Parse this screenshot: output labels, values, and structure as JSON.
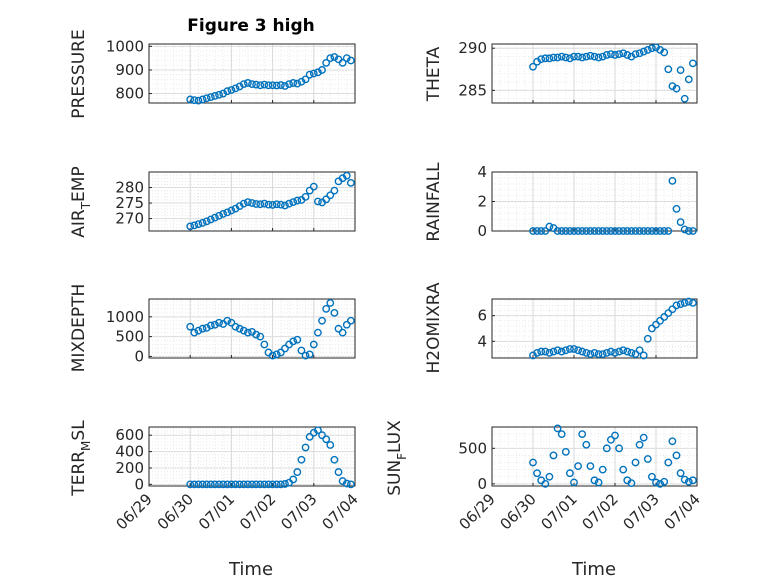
{
  "figure": {
    "title": "Figure 3 high",
    "marker_color": "#0072BD",
    "axis_color": "#262626",
    "grid_color": "#d9d9d9"
  },
  "chart_data": [
    {
      "type": "scatter",
      "ylabel": "PRESSURE",
      "title": "Figure 3 high",
      "xlim": [
        0,
        5
      ],
      "ylim": [
        760,
        1010
      ],
      "yticks": [
        800,
        900,
        1000
      ],
      "x": [
        1.0,
        1.1,
        1.2,
        1.3,
        1.4,
        1.5,
        1.6,
        1.7,
        1.8,
        1.9,
        2.0,
        2.1,
        2.2,
        2.3,
        2.4,
        2.5,
        2.6,
        2.7,
        2.8,
        2.9,
        3.0,
        3.1,
        3.2,
        3.3,
        3.4,
        3.5,
        3.6,
        3.7,
        3.8,
        3.9,
        4.0,
        4.1,
        4.2,
        4.3,
        4.4,
        4.5,
        4.6,
        4.7,
        4.8,
        4.9
      ],
      "y": [
        775,
        772,
        770,
        775,
        780,
        785,
        790,
        795,
        800,
        810,
        815,
        822,
        830,
        840,
        845,
        840,
        838,
        835,
        838,
        835,
        835,
        834,
        836,
        832,
        840,
        845,
        842,
        850,
        860,
        880,
        885,
        890,
        900,
        930,
        950,
        955,
        945,
        930,
        950,
        940
      ]
    },
    {
      "type": "scatter",
      "ylabel": "THETA",
      "xlim": [
        0,
        5
      ],
      "ylim": [
        283.5,
        290.5
      ],
      "yticks": [
        285,
        290
      ],
      "x": [
        1.0,
        1.1,
        1.2,
        1.3,
        1.4,
        1.5,
        1.6,
        1.7,
        1.8,
        1.9,
        2.0,
        2.1,
        2.2,
        2.3,
        2.4,
        2.5,
        2.6,
        2.7,
        2.8,
        2.9,
        3.0,
        3.1,
        3.2,
        3.3,
        3.4,
        3.5,
        3.6,
        3.7,
        3.8,
        3.9,
        4.0,
        4.1,
        4.2,
        4.3,
        4.4,
        4.5,
        4.6,
        4.7,
        4.8,
        4.9
      ],
      "y": [
        287.8,
        288.4,
        288.7,
        288.8,
        288.8,
        288.9,
        288.9,
        289.0,
        288.9,
        288.8,
        289.0,
        289.0,
        288.9,
        289.0,
        289.1,
        289.0,
        288.9,
        289.0,
        289.2,
        289.3,
        289.2,
        289.3,
        289.4,
        289.2,
        289.0,
        289.3,
        289.4,
        289.6,
        289.8,
        290.0,
        290.1,
        289.8,
        289.5,
        287.5,
        285.5,
        285.2,
        287.4,
        284.0,
        286.3,
        288.2
      ]
    },
    {
      "type": "scatter",
      "ylabel": "AIR_TEMP",
      "xlim": [
        0,
        5
      ],
      "ylim": [
        266,
        285
      ],
      "yticks": [
        270,
        275,
        280
      ],
      "x": [
        1.0,
        1.1,
        1.2,
        1.3,
        1.4,
        1.5,
        1.6,
        1.7,
        1.8,
        1.9,
        2.0,
        2.1,
        2.2,
        2.3,
        2.4,
        2.5,
        2.6,
        2.7,
        2.8,
        2.9,
        3.0,
        3.1,
        3.2,
        3.3,
        3.4,
        3.5,
        3.6,
        3.7,
        3.8,
        3.9,
        4.0,
        4.1,
        4.2,
        4.3,
        4.4,
        4.5,
        4.6,
        4.7,
        4.8,
        4.9
      ],
      "y": [
        267.5,
        267.8,
        268.2,
        268.6,
        269.1,
        269.7,
        270.3,
        270.9,
        271.5,
        272.0,
        272.6,
        273.2,
        274.0,
        274.8,
        275.3,
        275.0,
        274.7,
        274.6,
        274.8,
        274.5,
        274.4,
        274.6,
        274.5,
        274.2,
        274.8,
        275.3,
        275.8,
        276.0,
        277.0,
        279.0,
        280.3,
        275.5,
        275.2,
        276.2,
        277.5,
        279.0,
        282.0,
        283.0,
        283.8,
        281.5
      ]
    },
    {
      "type": "scatter",
      "ylabel": "RAINFALL",
      "xlim": [
        0,
        5
      ],
      "ylim": [
        0,
        4
      ],
      "yticks": [
        0,
        2,
        4
      ],
      "x": [
        1.0,
        1.1,
        1.2,
        1.3,
        1.4,
        1.5,
        1.6,
        1.7,
        1.8,
        1.9,
        2.0,
        2.1,
        2.2,
        2.3,
        2.4,
        2.5,
        2.6,
        2.7,
        2.8,
        2.9,
        3.0,
        3.1,
        3.2,
        3.3,
        3.4,
        3.5,
        3.6,
        3.7,
        3.8,
        3.9,
        4.0,
        4.1,
        4.2,
        4.3,
        4.4,
        4.5,
        4.6,
        4.7,
        4.8,
        4.9
      ],
      "y": [
        0,
        0,
        0,
        0,
        0.3,
        0.2,
        0,
        0,
        0,
        0,
        0,
        0,
        0,
        0,
        0,
        0,
        0,
        0,
        0,
        0,
        0,
        0,
        0,
        0,
        0,
        0,
        0,
        0,
        0,
        0,
        0,
        0,
        0,
        0,
        3.4,
        1.5,
        0.6,
        0.1,
        0,
        0
      ]
    },
    {
      "type": "scatter",
      "ylabel": "MIXDEPTH",
      "xlim": [
        0,
        5
      ],
      "ylim": [
        -40,
        1450
      ],
      "yticks": [
        0,
        500,
        1000
      ],
      "x": [
        1.0,
        1.1,
        1.2,
        1.3,
        1.4,
        1.5,
        1.6,
        1.7,
        1.8,
        1.9,
        2.0,
        2.1,
        2.2,
        2.3,
        2.4,
        2.5,
        2.6,
        2.7,
        2.8,
        2.9,
        3.0,
        3.1,
        3.2,
        3.3,
        3.4,
        3.5,
        3.6,
        3.7,
        3.8,
        3.9,
        4.0,
        4.1,
        4.2,
        4.3,
        4.4,
        4.5,
        4.6,
        4.7,
        4.8,
        4.9
      ],
      "y": [
        750,
        600,
        650,
        700,
        720,
        780,
        800,
        850,
        820,
        900,
        850,
        750,
        700,
        650,
        600,
        620,
        550,
        500,
        300,
        100,
        20,
        50,
        100,
        200,
        300,
        380,
        420,
        150,
        20,
        50,
        300,
        600,
        900,
        1200,
        1350,
        1100,
        700,
        600,
        800,
        900
      ]
    },
    {
      "type": "scatter",
      "ylabel": "H2OMIXRA",
      "xlim": [
        0,
        5
      ],
      "ylim": [
        2.7,
        7.3
      ],
      "yticks": [
        4,
        6
      ],
      "x": [
        1.0,
        1.1,
        1.2,
        1.3,
        1.4,
        1.5,
        1.6,
        1.7,
        1.8,
        1.9,
        2.0,
        2.1,
        2.2,
        2.3,
        2.4,
        2.5,
        2.6,
        2.7,
        2.8,
        2.9,
        3.0,
        3.1,
        3.2,
        3.3,
        3.4,
        3.5,
        3.6,
        3.7,
        3.8,
        3.9,
        4.0,
        4.1,
        4.2,
        4.3,
        4.4,
        4.5,
        4.6,
        4.7,
        4.8,
        4.9
      ],
      "y": [
        2.9,
        3.1,
        3.2,
        3.2,
        3.1,
        3.2,
        3.3,
        3.2,
        3.3,
        3.4,
        3.4,
        3.3,
        3.2,
        3.1,
        3.0,
        3.1,
        3.0,
        3.0,
        3.1,
        3.2,
        3.1,
        3.2,
        3.3,
        3.2,
        3.1,
        3.0,
        3.3,
        2.9,
        4.2,
        5.0,
        5.3,
        5.6,
        5.9,
        6.2,
        6.5,
        6.8,
        6.9,
        7.0,
        7.1,
        7.0
      ]
    },
    {
      "type": "scatter",
      "ylabel": "TERR_MSL",
      "xlim": [
        0,
        5
      ],
      "ylim": [
        -20,
        700
      ],
      "yticks": [
        0,
        200,
        400,
        600
      ],
      "x": [
        1.0,
        1.1,
        1.2,
        1.3,
        1.4,
        1.5,
        1.6,
        1.7,
        1.8,
        1.9,
        2.0,
        2.1,
        2.2,
        2.3,
        2.4,
        2.5,
        2.6,
        2.7,
        2.8,
        2.9,
        3.0,
        3.1,
        3.2,
        3.3,
        3.4,
        3.5,
        3.6,
        3.7,
        3.8,
        3.9,
        4.0,
        4.1,
        4.2,
        4.3,
        4.4,
        4.5,
        4.6,
        4.7,
        4.8,
        4.9
      ],
      "y": [
        0,
        0,
        0,
        0,
        0,
        0,
        0,
        0,
        0,
        0,
        0,
        0,
        0,
        0,
        0,
        0,
        0,
        0,
        0,
        0,
        0,
        0,
        0,
        5,
        20,
        60,
        150,
        300,
        450,
        580,
        630,
        660,
        600,
        550,
        480,
        300,
        150,
        40,
        10,
        0
      ]
    },
    {
      "type": "scatter",
      "ylabel": "SUN_FLUX",
      "xlim": [
        0,
        5
      ],
      "ylim": [
        -30,
        800
      ],
      "yticks": [
        0,
        500
      ],
      "x": [
        1.0,
        1.1,
        1.2,
        1.3,
        1.4,
        1.5,
        1.6,
        1.7,
        1.8,
        1.9,
        2.0,
        2.1,
        2.2,
        2.3,
        2.4,
        2.5,
        2.6,
        2.7,
        2.8,
        2.9,
        3.0,
        3.1,
        3.2,
        3.3,
        3.4,
        3.5,
        3.6,
        3.7,
        3.8,
        3.9,
        4.0,
        4.1,
        4.2,
        4.3,
        4.4,
        4.5,
        4.6,
        4.7,
        4.8,
        4.9
      ],
      "y": [
        300,
        150,
        50,
        0,
        100,
        400,
        780,
        700,
        450,
        150,
        20,
        250,
        700,
        550,
        250,
        50,
        20,
        200,
        500,
        620,
        680,
        500,
        200,
        50,
        10,
        300,
        550,
        650,
        350,
        100,
        20,
        0,
        30,
        300,
        600,
        400,
        150,
        60,
        30,
        50
      ]
    }
  ],
  "xaxis": {
    "tick_labels": [
      "06/29",
      "06/30",
      "07/01",
      "07/02",
      "07/03",
      "07/04"
    ],
    "label": "Time"
  },
  "ylabels_display": {
    "pressure": "PRESSURE",
    "theta": "THETA",
    "air_temp_main": "AIR",
    "air_temp_sub": "T",
    "air_temp_tail": "EMP",
    "rainfall": "RAINFALL",
    "mixdepth": "MIXDEPTH",
    "h2omixra": "H2OMIXRA",
    "terr_main": "TERR",
    "terr_sub": "M",
    "terr_tail": "SL",
    "sun_main": "SUN",
    "sun_sub": "F",
    "sun_tail": "LUX"
  }
}
